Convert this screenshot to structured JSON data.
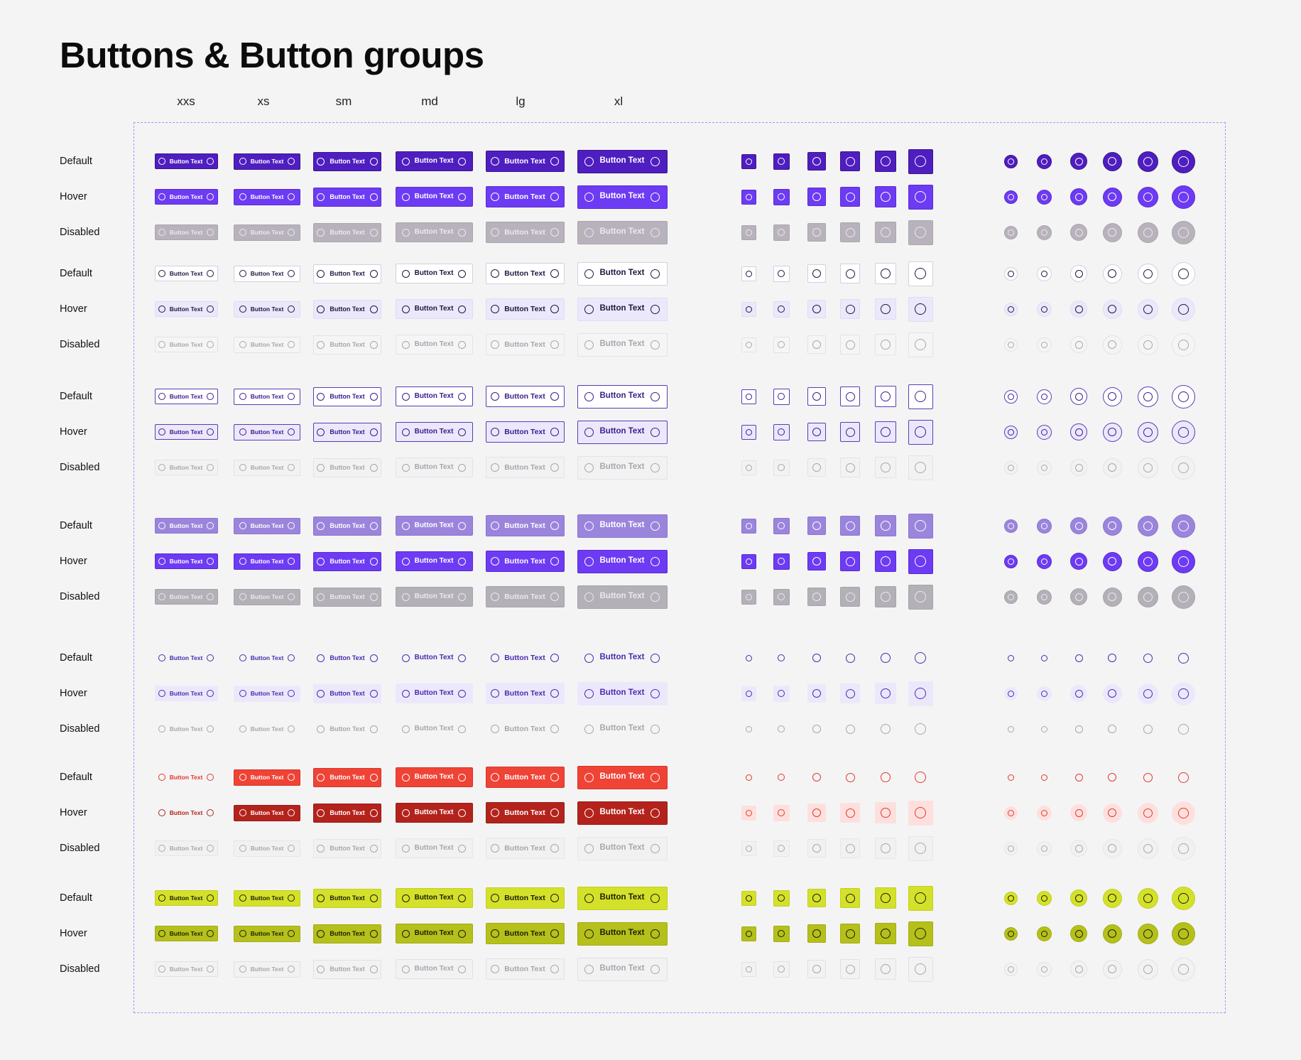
{
  "page": {
    "title": "Buttons & Button groups"
  },
  "sizes": [
    "xxs",
    "xs",
    "sm",
    "md",
    "lg",
    "xl"
  ],
  "button_label": "Button Text",
  "state_labels": [
    "Default",
    "Hover",
    "Disabled"
  ],
  "variants": [
    {
      "name": "primary",
      "states": [
        {
          "state": "Default",
          "bg": "#4f1ec0",
          "fg": "#ffffff",
          "border": "#3b128f"
        },
        {
          "state": "Hover",
          "bg": "#6d3bf3",
          "fg": "#ffffff",
          "border": "#5a2ad6"
        },
        {
          "state": "Disabled",
          "bg": "#b7b2bb",
          "fg": "#ebe9ee",
          "border": "#aaa5ae"
        }
      ]
    },
    {
      "name": "secondary",
      "states": [
        {
          "state": "Default",
          "bg": "#ffffff",
          "fg": "#1f1740",
          "border": "#d4d0da"
        },
        {
          "state": "Hover",
          "bg": "#ece8fb",
          "fg": "#1f1740",
          "border": "#e0dbf4"
        },
        {
          "state": "Disabled",
          "bg": "#f5f5f6",
          "fg": "#a8a6ad",
          "border": "#e3e2e6"
        }
      ]
    },
    {
      "name": "outline",
      "states": [
        {
          "state": "Default",
          "bg": "#ffffff",
          "fg": "#3d1c8e",
          "border": "#5b3bb8"
        },
        {
          "state": "Hover",
          "bg": "#ece8fb",
          "fg": "#3d1c8e",
          "border": "#5b3bb8"
        },
        {
          "state": "Disabled",
          "bg": "#f2f2f3",
          "fg": "#a8a6ad",
          "border": "#e3e2e6"
        }
      ]
    },
    {
      "name": "soft",
      "states": [
        {
          "state": "Default",
          "bg": "#9b85dc",
          "fg": "#ffffff",
          "border": "#8b74d0"
        },
        {
          "state": "Hover",
          "bg": "#6d3bf3",
          "fg": "#ffffff",
          "border": "#5a2ad6"
        },
        {
          "state": "Disabled",
          "bg": "#b3b0b7",
          "fg": "#ebe9ee",
          "border": "#a6a3aa"
        }
      ]
    },
    {
      "name": "ghost",
      "states": [
        {
          "state": "Default",
          "bg": "transparent",
          "fg": "#4a2bb0",
          "border": "transparent"
        },
        {
          "state": "Hover",
          "bg": "#ece8fb",
          "fg": "#4a2bb0",
          "border": "transparent"
        },
        {
          "state": "Disabled",
          "bg": "transparent",
          "fg": "#a8a6ad",
          "border": "transparent"
        }
      ]
    },
    {
      "name": "danger",
      "states": [
        {
          "state": "Default",
          "bg": "#ef4336",
          "fg": "#ffffff",
          "border": "#d83428"
        },
        {
          "state": "Hover",
          "bg": "#b3231c",
          "fg": "#ffffff",
          "border": "#9a1b15"
        },
        {
          "state": "Disabled",
          "bg": "#f1f1f2",
          "fg": "#a8a6ad",
          "border": "#e6e5e8"
        }
      ]
    },
    {
      "name": "lime",
      "states": [
        {
          "state": "Default",
          "bg": "#d4e12b",
          "fg": "#1d1f04",
          "border": "#c2cf1e"
        },
        {
          "state": "Hover",
          "bg": "#b5c01b",
          "fg": "#1d1f04",
          "border": "#a3ad14"
        },
        {
          "state": "Disabled",
          "bg": "#f2f2f3",
          "fg": "#a8a6ad",
          "border": "#e1e0e4"
        }
      ]
    }
  ],
  "variant_special": {
    "danger_default_xxs": {
      "bg": "transparent",
      "fg": "#e3392d",
      "border": "transparent"
    },
    "danger_hover_xxs": {
      "bg": "transparent",
      "fg": "#b3231c",
      "border": "transparent"
    },
    "danger_icon_default": {
      "bg": "transparent",
      "fg": "#e3392d",
      "border": "transparent"
    },
    "danger_icon_hover": {
      "bg": "#fde0de",
      "fg": "#e3392d",
      "border": "transparent"
    }
  }
}
